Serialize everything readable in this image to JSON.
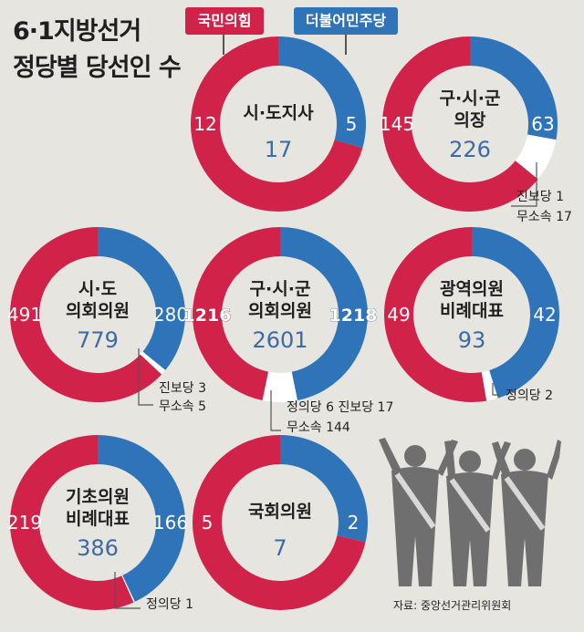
{
  "title": {
    "line1": "6·1지방선거",
    "line2": "정당별 당선인 수"
  },
  "legend": {
    "party_red": "국민의힘",
    "party_blue": "더불어민주당"
  },
  "colors": {
    "red": "#d1234a",
    "blue": "#2f73b8",
    "other": "#ffffff",
    "total_text": "#3d6aa3"
  },
  "source": "자료: 중앙선거관리위원회",
  "chart_data": [
    {
      "type": "pie",
      "labels": [
        "시·도지사"
      ],
      "total": "17",
      "segments": [
        {
          "party": "더불어민주당",
          "value": 5,
          "label": "5"
        },
        {
          "party": "국민의힘",
          "value": 12,
          "label": "12"
        }
      ],
      "notes": []
    },
    {
      "type": "pie",
      "labels": [
        "구·시·군",
        "의장"
      ],
      "total": "226",
      "segments": [
        {
          "party": "더불어민주당",
          "value": 63,
          "label": "63"
        },
        {
          "party": "other",
          "value": 18,
          "label": ""
        },
        {
          "party": "국민의힘",
          "value": 145,
          "label": "145"
        }
      ],
      "notes": [
        "진보당 1",
        "무소속 17"
      ]
    },
    {
      "type": "pie",
      "labels": [
        "시·도",
        "의회의원"
      ],
      "total": "779",
      "segments": [
        {
          "party": "더불어민주당",
          "value": 280,
          "label": "280"
        },
        {
          "party": "other",
          "value": 8,
          "label": ""
        },
        {
          "party": "국민의힘",
          "value": 491,
          "label": "491"
        }
      ],
      "notes": [
        "진보당 3",
        "무소속 5"
      ]
    },
    {
      "type": "pie",
      "labels": [
        "구·시·군",
        "의회의원"
      ],
      "total": "2601",
      "segments": [
        {
          "party": "더불어민주당",
          "value": 1218,
          "label": "1218"
        },
        {
          "party": "other",
          "value": 167,
          "label": ""
        },
        {
          "party": "국민의힘",
          "value": 1216,
          "label": "1216"
        }
      ],
      "notes": [
        "정의당 6  진보당 17",
        "무소속 144"
      ]
    },
    {
      "type": "pie",
      "labels": [
        "광역의원",
        "비례대표"
      ],
      "total": "93",
      "segments": [
        {
          "party": "더불어민주당",
          "value": 42,
          "label": "42"
        },
        {
          "party": "other",
          "value": 2,
          "label": ""
        },
        {
          "party": "국민의힘",
          "value": 49,
          "label": "49"
        }
      ],
      "notes": [
        "정의당 2"
      ]
    },
    {
      "type": "pie",
      "labels": [
        "기초의원",
        "비례대표"
      ],
      "total": "386",
      "segments": [
        {
          "party": "더불어민주당",
          "value": 166,
          "label": "166"
        },
        {
          "party": "other",
          "value": 1,
          "label": ""
        },
        {
          "party": "국민의힘",
          "value": 219,
          "label": "219"
        }
      ],
      "notes": [
        "정의당 1"
      ]
    },
    {
      "type": "pie",
      "labels": [
        "국회의원"
      ],
      "total": "7",
      "segments": [
        {
          "party": "더불어민주당",
          "value": 2,
          "label": "2"
        },
        {
          "party": "국민의힘",
          "value": 5,
          "label": "5"
        }
      ],
      "notes": []
    }
  ]
}
